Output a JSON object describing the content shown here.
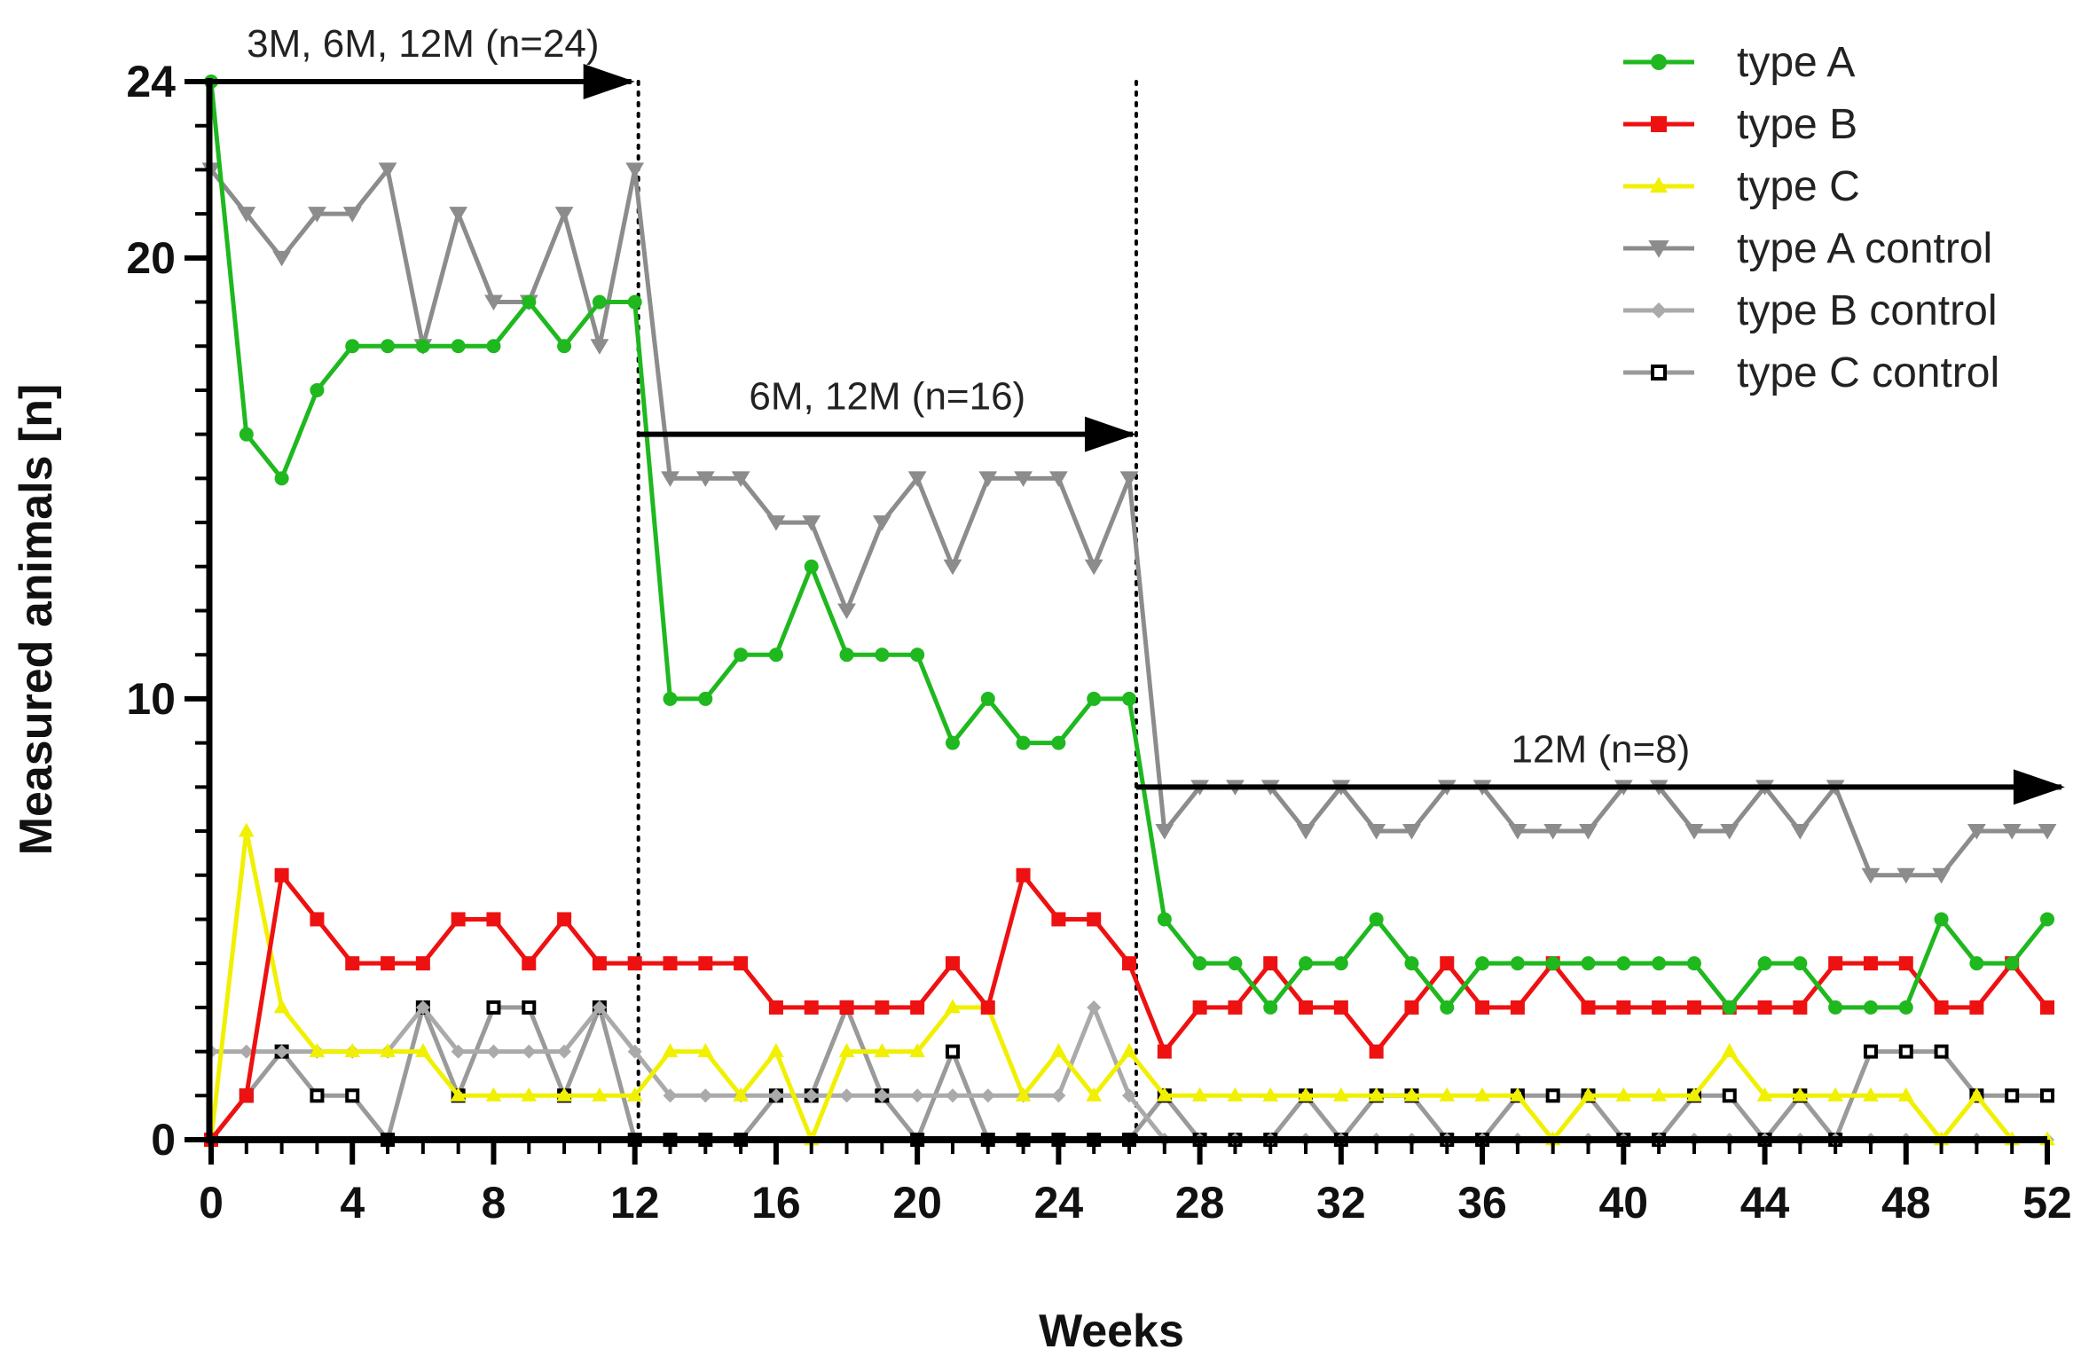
{
  "chart_data": {
    "type": "line",
    "title": "",
    "xlabel": "Weeks",
    "ylabel": "Measured animals [n]",
    "xlim": [
      0,
      52
    ],
    "ylim": [
      0,
      24
    ],
    "xticks": [
      0,
      4,
      8,
      12,
      16,
      20,
      24,
      28,
      32,
      36,
      40,
      44,
      48,
      52
    ],
    "yticks": [
      0,
      10,
      20,
      24
    ],
    "x": [
      0,
      1,
      2,
      3,
      4,
      5,
      6,
      7,
      8,
      9,
      10,
      11,
      12,
      13,
      14,
      15,
      16,
      17,
      18,
      19,
      20,
      21,
      22,
      23,
      24,
      25,
      26,
      27,
      28,
      29,
      30,
      31,
      32,
      33,
      34,
      35,
      36,
      37,
      38,
      39,
      40,
      41,
      42,
      43,
      44,
      45,
      46,
      47,
      48,
      49,
      50,
      51,
      52
    ],
    "series": [
      {
        "name": "type A",
        "color": "#1fb81f",
        "marker": "circle",
        "values": [
          24,
          16,
          15,
          17,
          18,
          18,
          18,
          18,
          18,
          19,
          18,
          19,
          19,
          10,
          10,
          11,
          11,
          13,
          11,
          11,
          11,
          9,
          10,
          9,
          9,
          10,
          10,
          5,
          4,
          4,
          3,
          4,
          4,
          5,
          4,
          3,
          4,
          4,
          4,
          4,
          4,
          4,
          4,
          3,
          4,
          4,
          3,
          3,
          3,
          5,
          4,
          4,
          5
        ]
      },
      {
        "name": "type B",
        "color": "#ee1111",
        "marker": "square",
        "values": [
          0,
          1,
          6,
          5,
          4,
          4,
          4,
          5,
          5,
          4,
          5,
          4,
          4,
          4,
          4,
          4,
          3,
          3,
          3,
          3,
          3,
          4,
          3,
          6,
          5,
          5,
          4,
          2,
          3,
          3,
          4,
          3,
          3,
          2,
          3,
          4,
          3,
          3,
          4,
          3,
          3,
          3,
          3,
          3,
          3,
          3,
          4,
          4,
          4,
          3,
          3,
          4,
          3
        ]
      },
      {
        "name": "type C",
        "color": "#f0f000",
        "marker": "triangle-up",
        "values": [
          0,
          7,
          3,
          2,
          2,
          2,
          2,
          1,
          1,
          1,
          1,
          1,
          1,
          2,
          2,
          1,
          2,
          0,
          2,
          2,
          2,
          3,
          3,
          1,
          2,
          1,
          2,
          1,
          1,
          1,
          1,
          1,
          1,
          1,
          1,
          1,
          1,
          1,
          0,
          1,
          1,
          1,
          1,
          2,
          1,
          1,
          1,
          1,
          1,
          0,
          1,
          0,
          0
        ]
      },
      {
        "name": "type A control",
        "color": "#8c8c8c",
        "marker": "triangle-down",
        "values": [
          22,
          21,
          20,
          21,
          21,
          22,
          18,
          21,
          19,
          19,
          21,
          18,
          22,
          15,
          15,
          15,
          14,
          14,
          12,
          14,
          15,
          13,
          15,
          15,
          15,
          13,
          15,
          7,
          8,
          8,
          8,
          7,
          8,
          7,
          7,
          8,
          8,
          7,
          7,
          7,
          8,
          8,
          7,
          7,
          8,
          7,
          8,
          6,
          6,
          6,
          7,
          7,
          7
        ]
      },
      {
        "name": "type B control",
        "color": "#aaaaaa",
        "marker": "diamond",
        "values": [
          2,
          2,
          2,
          2,
          2,
          2,
          3,
          2,
          2,
          2,
          2,
          3,
          2,
          1,
          1,
          1,
          1,
          1,
          1,
          1,
          1,
          1,
          1,
          1,
          1,
          3,
          1,
          0,
          0,
          0,
          0,
          0,
          0,
          0,
          0,
          0,
          0,
          0,
          0,
          0,
          0,
          0,
          0,
          0,
          0,
          0,
          0,
          0,
          0,
          0,
          0,
          0,
          0
        ]
      },
      {
        "name": "type C control",
        "color": "#000000",
        "line_color": "#9a9a9a",
        "marker": "open-square",
        "values": [
          0,
          1,
          2,
          1,
          1,
          0,
          3,
          1,
          3,
          3,
          1,
          3,
          0,
          0,
          0,
          0,
          1,
          1,
          3,
          1,
          0,
          2,
          0,
          0,
          0,
          0,
          0,
          1,
          0,
          0,
          0,
          1,
          0,
          1,
          1,
          0,
          0,
          1,
          1,
          1,
          0,
          0,
          1,
          1,
          0,
          1,
          0,
          2,
          2,
          2,
          1,
          1,
          1
        ]
      }
    ],
    "phases": [
      {
        "label": "3M, 6M, 12M (n=24)",
        "x_start": 0,
        "x_end": 12,
        "y": 24
      },
      {
        "label": "6M, 12M (n=16)",
        "x_start": 12.1,
        "x_end": 26.2,
        "y": 16
      },
      {
        "label": "12M (n=8)",
        "x_start": 26.2,
        "x_end": 52.5,
        "y": 8
      }
    ],
    "dividers": [
      12.1,
      26.2
    ],
    "legend_position": "top-right",
    "grid": false
  }
}
